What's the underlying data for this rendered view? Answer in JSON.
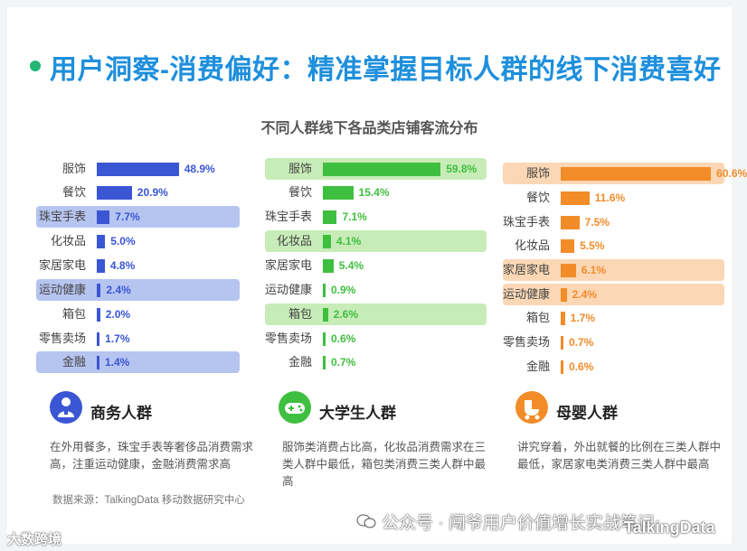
{
  "header": {
    "title": "用户洞察-消费偏好：精准掌握目标人群的线下消费喜好",
    "accent_color": "#22b573",
    "title_color": "#1e8fdc"
  },
  "chart_data": {
    "type": "bar",
    "title": "不同人群线下各品类店铺客流分布",
    "categories": [
      "服饰",
      "餐饮",
      "珠宝手表",
      "化妆品",
      "家居家电",
      "运动健康",
      "箱包",
      "零售卖场",
      "金融"
    ],
    "unit": "%",
    "series": [
      {
        "name": "商务人群",
        "color": "#3a56d4",
        "highlight_color": "#b6c4f0",
        "values": [
          48.9,
          20.9,
          7.7,
          5.0,
          4.8,
          2.4,
          2.0,
          1.7,
          1.4
        ],
        "labels": [
          "48.9%",
          "20.9%",
          "7.7%",
          "5.0%",
          "4.8%",
          "2.4%",
          "2.0%",
          "1.7%",
          "1.4%"
        ],
        "highlighted": [
          "珠宝手表",
          "运动健康",
          "金融"
        ]
      },
      {
        "name": "大学生人群",
        "color": "#3fbf3f",
        "highlight_color": "#c7ecb8",
        "values": [
          59.8,
          15.4,
          7.1,
          4.1,
          5.4,
          0.9,
          2.6,
          0.6,
          0.7
        ],
        "labels": [
          "59.8%",
          "15.4%",
          "7.1%",
          "4.1%",
          "5.4%",
          "0.9%",
          "2.6%",
          "0.6%",
          "0.7%"
        ],
        "highlighted": [
          "服饰",
          "化妆品",
          "箱包"
        ]
      },
      {
        "name": "母婴人群",
        "color": "#f28c28",
        "highlight_color": "#fbd7b5",
        "values": [
          60.6,
          11.6,
          7.5,
          5.5,
          6.1,
          2.4,
          1.7,
          0.7,
          0.6
        ],
        "labels": [
          "60.6%",
          "11.6%",
          "7.5%",
          "5.5%",
          "6.1%",
          "2.4%",
          "1.7%",
          "0.7%",
          "0.6%"
        ],
        "highlighted": [
          "服饰",
          "家居家电",
          "运动健康"
        ]
      }
    ]
  },
  "segments": [
    {
      "name": "商务人群",
      "icon": "business-person-icon",
      "color": "#3a56d4",
      "desc": "在外用餐多，珠宝手表等奢侈品消费需求高，注重运动健康，金融消费需求高"
    },
    {
      "name": "大学生人群",
      "icon": "gamepad-icon",
      "color": "#3fbf3f",
      "desc": "服饰类消费占比高，化妆品消费需求在三类人群中最低，箱包类消费三类人群中最高"
    },
    {
      "name": "母婴人群",
      "icon": "baby-stroller-icon",
      "color": "#f28c28",
      "desc": "讲究穿着，外出就餐的比例在三类人群中最低，家居家电类消费三类人群中最高"
    }
  ],
  "footer": {
    "source": "数据来源：TalkingData 移动数据研究中心",
    "watermark_left": "大数跨境",
    "watermark_right": "公众号 · 闯爷用户价值增长实战笔记",
    "watermark_logo": "TalkingData"
  }
}
